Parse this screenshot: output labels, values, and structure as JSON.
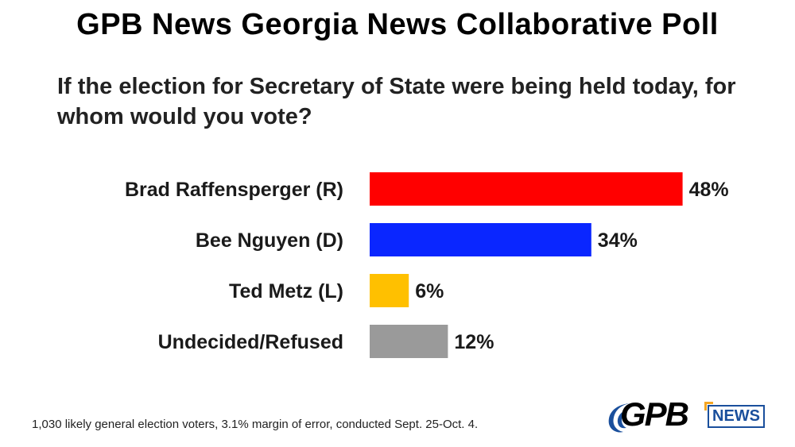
{
  "header": {
    "title": "GPB News Georgia News Collaborative Poll",
    "question": "If the election for Secretary of State were being held today, for whom would you vote?"
  },
  "chart_data": {
    "type": "bar",
    "orientation": "horizontal",
    "categories": [
      "Brad Raffensperger (R)",
      "Bee Nguyen (D)",
      "Ted Metz (L)",
      "Undecided/Refused"
    ],
    "values": [
      48,
      34,
      6,
      12
    ],
    "value_labels": [
      "48%",
      "34%",
      "6%",
      "12%"
    ],
    "colors": [
      "#ff0000",
      "#0a26ff",
      "#ffc000",
      "#9a9a9a"
    ],
    "unit": "%",
    "xlim": [
      0,
      100
    ],
    "grid": false
  },
  "footer": {
    "note": "1,030 likely general election voters, 3.1% margin of error, conducted Sept. 25-Oct. 4.",
    "logo_main": "GPB",
    "logo_sub": "NEWS"
  },
  "colors": {
    "logo_blue": "#1a4f9c",
    "logo_accent": "#f5a623"
  }
}
